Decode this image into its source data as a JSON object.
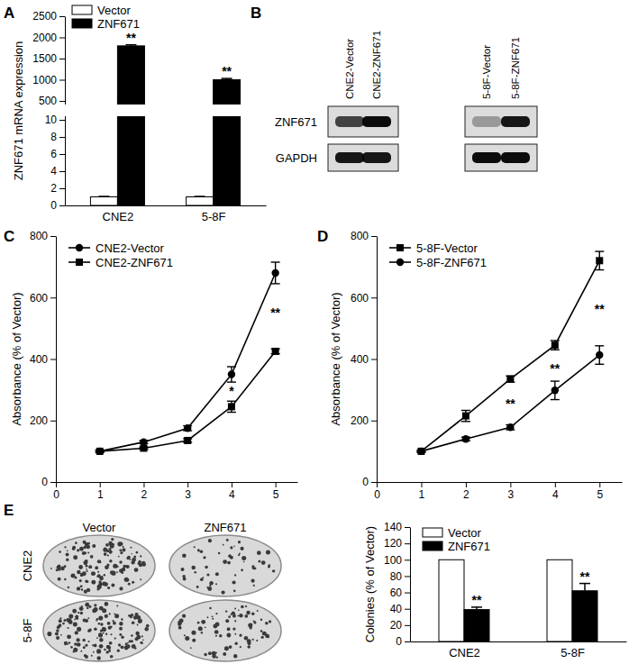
{
  "chart_data": [
    {
      "type": "bar",
      "panel": "A",
      "y_label": "ZNF671 mRNA expression",
      "categories": [
        "CNE2",
        "5-8F"
      ],
      "series": [
        {
          "name": "Vector",
          "color": "#ffffff",
          "values": [
            1,
            1
          ],
          "errors": [
            0.05,
            0.05
          ]
        },
        {
          "name": "ZNF671",
          "color": "#000000",
          "values": [
            1800,
            1000
          ],
          "errors": [
            25,
            30
          ],
          "significance": [
            "**",
            "**"
          ]
        }
      ],
      "ylim": [
        0,
        2500
      ],
      "ybreak": [
        10,
        500
      ],
      "yticks": [
        0,
        2,
        4,
        6,
        8,
        10,
        500,
        1000,
        1500,
        2000,
        2500
      ],
      "legend": "upper left"
    },
    {
      "type": "line",
      "panel": "C",
      "y_label": "Absorbance (% of Vector)",
      "x": [
        1,
        2,
        3,
        4,
        5
      ],
      "series": [
        {
          "name": "CNE2-Vector",
          "color": "#000000",
          "marker": "circle",
          "values": [
            100,
            130,
            175,
            350,
            680
          ],
          "errors": [
            4,
            5,
            8,
            25,
            35
          ]
        },
        {
          "name": "CNE2-ZNF671",
          "color": "#000000",
          "marker": "square",
          "values": [
            100,
            110,
            135,
            245,
            425
          ],
          "errors": [
            3,
            4,
            6,
            18,
            8
          ]
        }
      ],
      "significance": [
        null,
        null,
        null,
        "*",
        "**"
      ],
      "xlim": [
        0,
        5.5
      ],
      "xticks": [
        0,
        1,
        2,
        3,
        4,
        5
      ],
      "ylim": [
        0,
        800
      ],
      "yticks": [
        0,
        200,
        400,
        600,
        800
      ],
      "legend": "upper left"
    },
    {
      "type": "line",
      "panel": "D",
      "y_label": "Absorbance (% of Vector)",
      "x": [
        1,
        2,
        3,
        4,
        5
      ],
      "series": [
        {
          "name": "5-8F-Vector",
          "color": "#000000",
          "marker": "square",
          "values": [
            100,
            215,
            335,
            445,
            720
          ],
          "errors": [
            3,
            18,
            10,
            15,
            30
          ]
        },
        {
          "name": "5-8F-ZNF671",
          "color": "#000000",
          "marker": "circle",
          "values": [
            100,
            140,
            178,
            298,
            413
          ],
          "errors": [
            3,
            6,
            8,
            30,
            30
          ]
        }
      ],
      "significance": [
        null,
        null,
        "**",
        "**",
        "**"
      ],
      "xlim": [
        0,
        5.5
      ],
      "xticks": [
        0,
        1,
        2,
        3,
        4,
        5
      ],
      "ylim": [
        0,
        800
      ],
      "yticks": [
        0,
        200,
        400,
        600,
        800
      ],
      "legend": "upper left"
    },
    {
      "type": "bar",
      "panel": "E",
      "y_label": "Colonies (% of Vector)",
      "categories": [
        "CNE2",
        "5-8F"
      ],
      "series": [
        {
          "name": "Vector",
          "color": "#ffffff",
          "values": [
            100,
            100
          ]
        },
        {
          "name": "ZNF671",
          "color": "#000000",
          "values": [
            39,
            62
          ],
          "errors": [
            3,
            9
          ],
          "significance": [
            "**",
            "**"
          ]
        }
      ],
      "ylim": [
        0,
        140
      ],
      "yticks": [
        0,
        20,
        40,
        60,
        80,
        100,
        120,
        140
      ],
      "legend": "upper left"
    }
  ],
  "blot": {
    "panel": "B",
    "lanes": [
      "CNE2-Vector",
      "CNE2-ZNF671",
      "5-8F-Vector",
      "5-8F-ZNF671"
    ],
    "rows": [
      {
        "label": "ZNF671",
        "intensity": [
          0.7,
          0.95,
          0.3,
          0.9
        ]
      },
      {
        "label": "GAPDH",
        "intensity": [
          0.9,
          0.9,
          0.95,
          0.95
        ]
      }
    ]
  }
}
